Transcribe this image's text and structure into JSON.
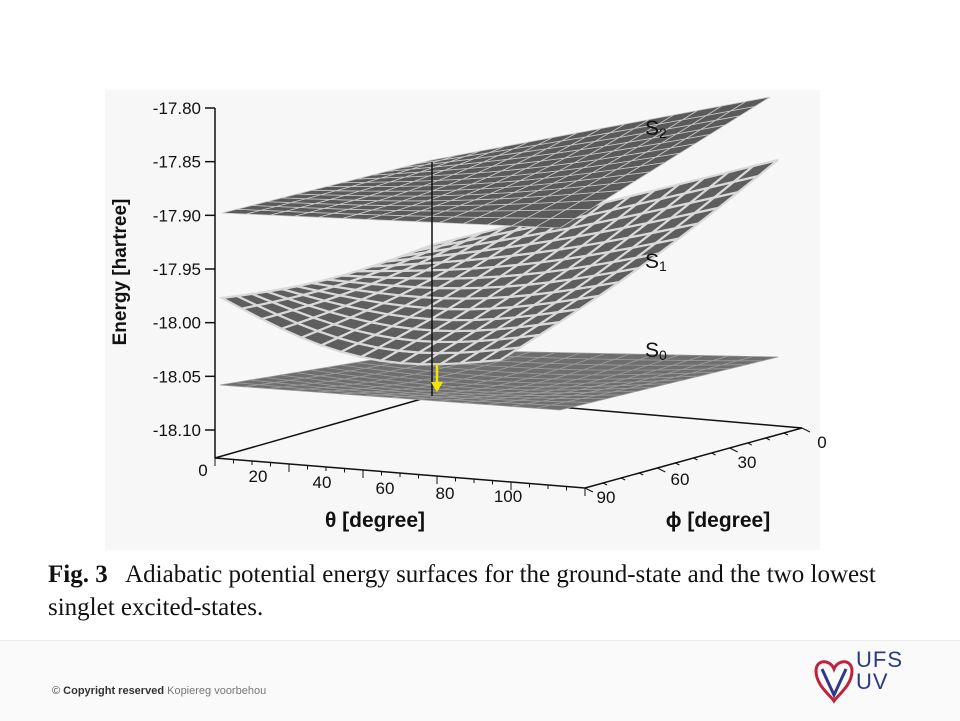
{
  "chart_data": {
    "type": "surface",
    "y_axis": {
      "label": "Energy [hartree]",
      "ticks": [
        "-17.80",
        "-17.85",
        "-17.90",
        "-17.95",
        "-18.00",
        "-18.05",
        "-18.10"
      ]
    },
    "theta_axis": {
      "label": "θ [degree]",
      "ticks": [
        "0",
        "20",
        "40",
        "60",
        "80",
        "100"
      ]
    },
    "phi_axis": {
      "label": "ϕ [degree]",
      "ticks": [
        "0",
        "30",
        "60",
        "90"
      ]
    },
    "surfaces": [
      {
        "name": "S2",
        "label_main": "S",
        "label_sub": "2",
        "color": "#5a5a5a"
      },
      {
        "name": "S1",
        "label_main": "S",
        "label_sub": "1",
        "color": "#d9d9d9"
      },
      {
        "name": "S0",
        "label_main": "S",
        "label_sub": "0",
        "color": "#6e6e6e"
      }
    ],
    "marker": {
      "type": "arrow",
      "color": "#f2e400"
    }
  },
  "caption": {
    "figure_label": "Fig. 3",
    "text": "Adiabatic potential energy surfaces for the ground-state and the two lowest singlet excited-states."
  },
  "footer": {
    "copyright_symbol": "©",
    "copyright_label": "Copyright reserved",
    "copyright_translation": "Kopiereg voorbehou",
    "logo_text_1": "UFS",
    "logo_text_2": "UV"
  }
}
